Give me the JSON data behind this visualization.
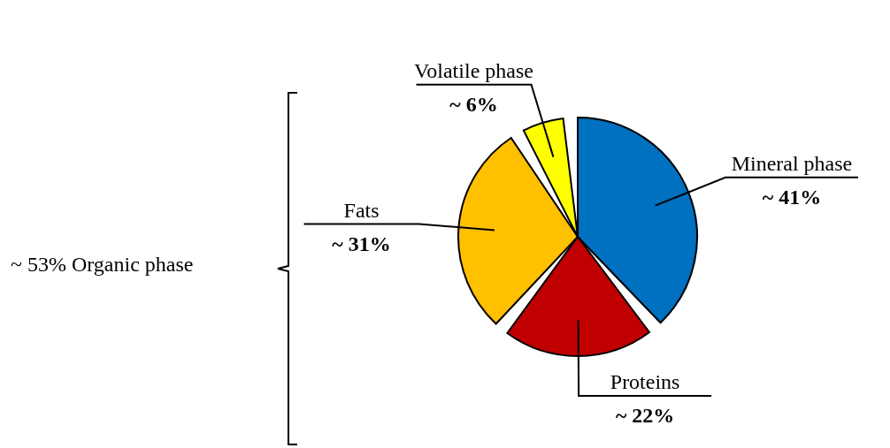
{
  "chart_data": {
    "type": "pie",
    "categories": [
      "Mineral phase",
      "Proteins",
      "Fats",
      "Volatile phase"
    ],
    "values": [
      41,
      22,
      31,
      6
    ],
    "colors": [
      "#0070c0",
      "#c00000",
      "#ffc000",
      "#ffff00"
    ],
    "value_labels": [
      "~ 41%",
      "~ 22%",
      "~ 31%",
      "~ 6%"
    ],
    "annotations": [
      "~ 53% Organic phase"
    ],
    "legend": false
  }
}
